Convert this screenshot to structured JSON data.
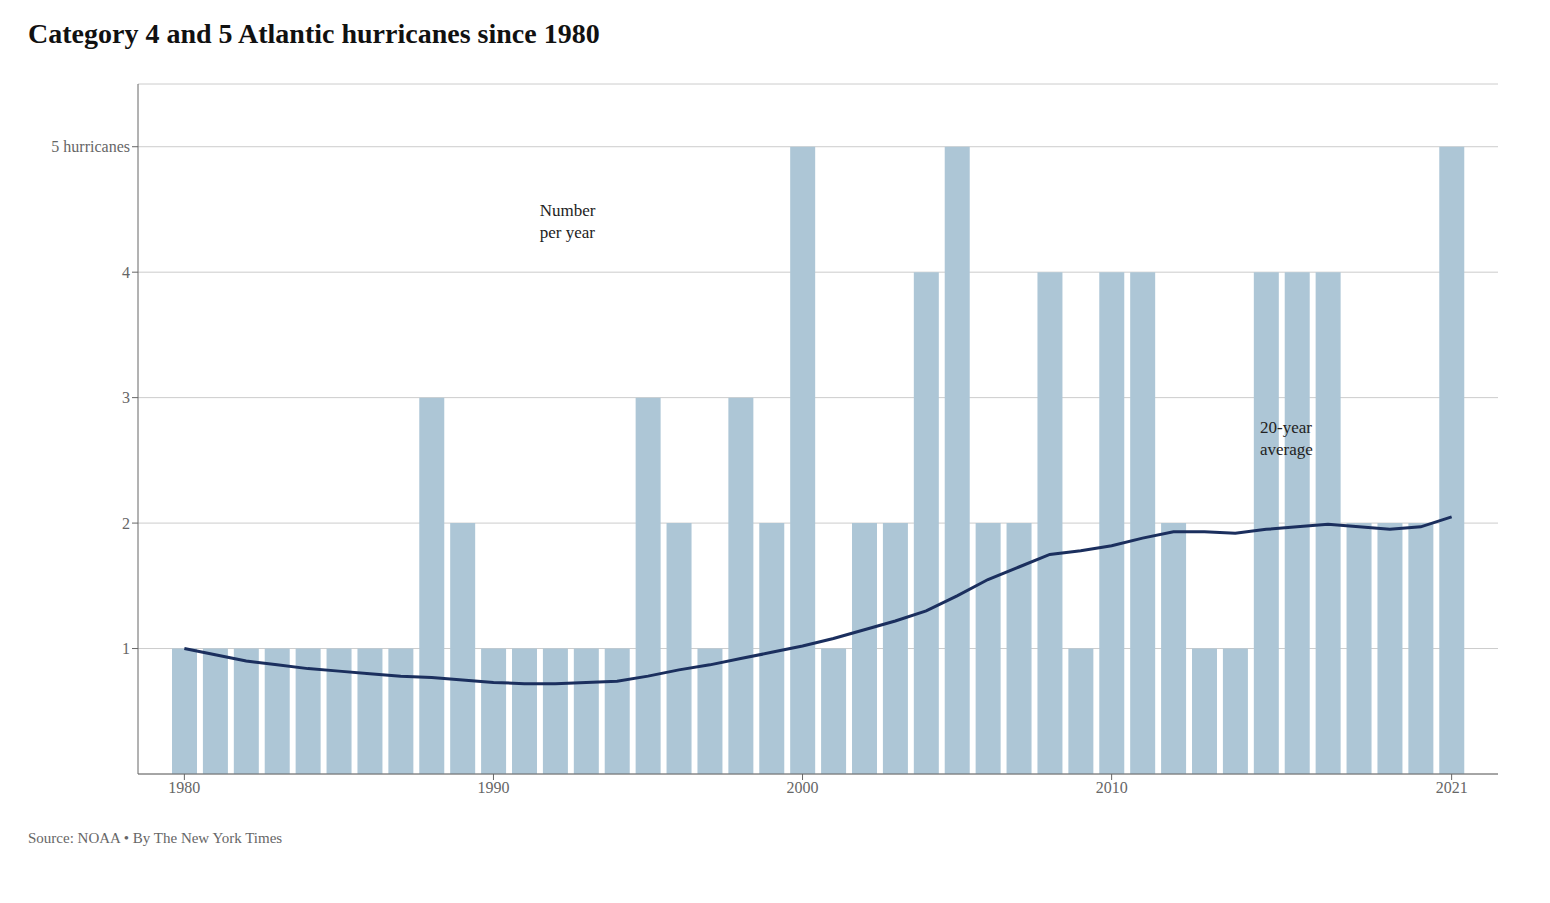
{
  "chart_data": {
    "type": "bar",
    "title": "Category 4 and 5 Atlantic hurricanes since 1980",
    "source": "Source: NOAA  •  By The New York Times",
    "x": [
      1980,
      1981,
      1982,
      1983,
      1984,
      1985,
      1986,
      1987,
      1988,
      1989,
      1990,
      1991,
      1992,
      1993,
      1994,
      1995,
      1996,
      1997,
      1998,
      1999,
      2000,
      2001,
      2002,
      2003,
      2004,
      2005,
      2006,
      2007,
      2008,
      2009,
      2010,
      2011,
      2012,
      2013,
      2014,
      2015,
      2016,
      2017,
      2018,
      2019,
      2020,
      2021
    ],
    "series": [
      {
        "type": "bar",
        "color": "#adc6d6",
        "values": [
          1,
          1,
          1,
          1,
          1,
          1,
          1,
          1,
          3,
          2,
          1,
          1,
          1,
          1,
          1,
          3,
          2,
          1,
          3,
          2,
          5,
          1,
          2,
          2,
          4,
          5,
          2,
          2,
          4,
          1,
          4,
          4,
          2,
          1,
          1,
          4,
          4,
          4,
          2,
          2,
          2,
          5
        ]
      },
      {
        "type": "line",
        "color": "#1b2f5e",
        "values": [
          1.0,
          0.95,
          0.9,
          0.87,
          0.84,
          0.82,
          0.8,
          0.78,
          0.77,
          0.75,
          0.73,
          0.72,
          0.72,
          0.73,
          0.74,
          0.78,
          0.83,
          0.87,
          0.92,
          0.97,
          1.02,
          1.08,
          1.15,
          1.22,
          1.3,
          1.42,
          1.55,
          1.65,
          1.75,
          1.78,
          1.82,
          1.88,
          1.93,
          1.93,
          1.92,
          1.95,
          1.97,
          1.99,
          1.97,
          1.95,
          1.97,
          2.05
        ]
      }
    ],
    "xlim": [
      1978.5,
      2022.5
    ],
    "xticks": [
      1980,
      1990,
      2000,
      2010,
      2021
    ],
    "ylim": [
      0,
      5.5
    ],
    "yticks": [
      1,
      2,
      3,
      4,
      {
        "value": 5,
        "label": "5 hurricanes"
      }
    ],
    "grid": true,
    "annotations": [
      {
        "text": "Number\nper year",
        "x": 1991.5,
        "y": 4.45
      },
      {
        "text": "20-year\naverage",
        "x": 2014.8,
        "y": 2.72
      }
    ]
  }
}
